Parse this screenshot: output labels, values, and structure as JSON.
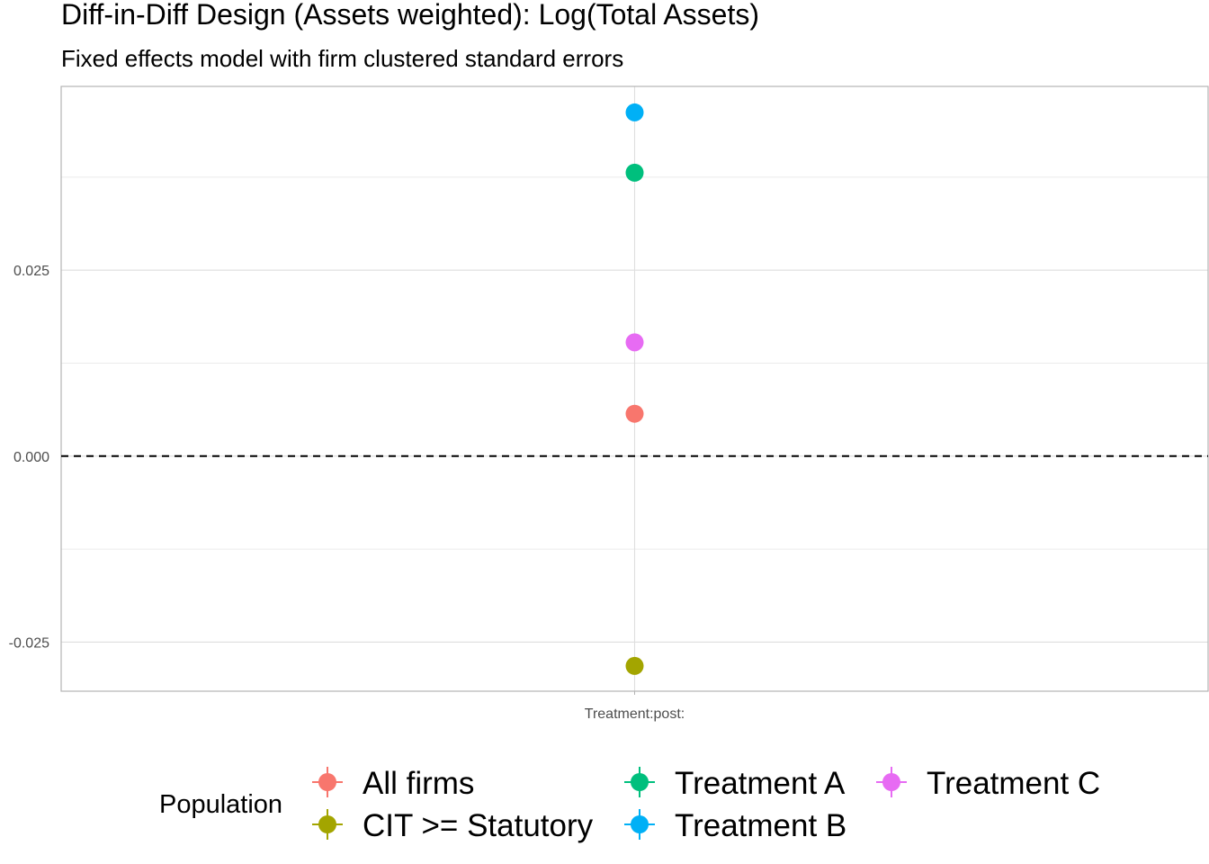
{
  "chart_data": {
    "type": "scatter",
    "title": "Diff-in-Diff Design (Assets weighted): Log(Total Assets)",
    "subtitle": "Fixed effects model with firm clustered standard errors",
    "xlabel": "",
    "ylabel": "",
    "categories": [
      "Treatment:post:"
    ],
    "ylim": [
      -0.0316,
      0.0497
    ],
    "y_ticks": [
      -0.025,
      0.0,
      0.025
    ],
    "y_tick_labels": [
      "-0.025",
      "0.000",
      "0.025"
    ],
    "reference_line": {
      "y": 0,
      "style": "dashed"
    },
    "grid": true,
    "legend": {
      "title": "Population",
      "position": "bottom"
    },
    "series": [
      {
        "name": "All firms",
        "color": "#F8766D",
        "values": [
          0.0057
        ]
      },
      {
        "name": "CIT >= Statutory",
        "color": "#A3A500",
        "values": [
          -0.0282
        ]
      },
      {
        "name": "Treatment A",
        "color": "#00BF7D",
        "values": [
          0.0381
        ]
      },
      {
        "name": "Treatment B",
        "color": "#00B0F6",
        "values": [
          0.0462
        ]
      },
      {
        "name": "Treatment C",
        "color": "#E76BF3",
        "values": [
          0.0153
        ]
      }
    ]
  }
}
